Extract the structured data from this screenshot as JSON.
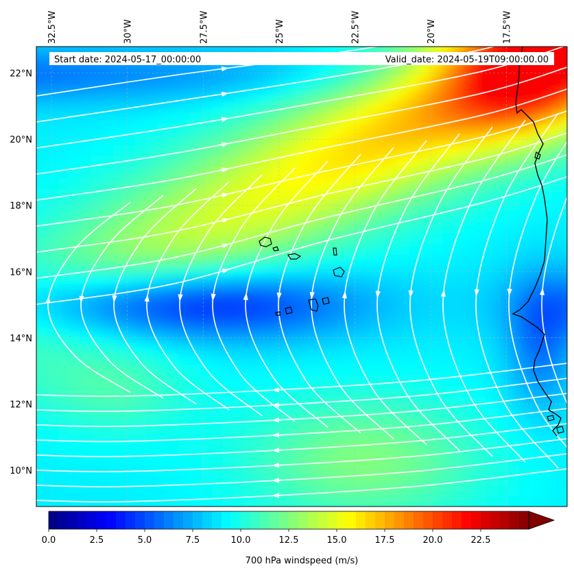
{
  "map": {
    "lon_range": [
      -33,
      -15.5
    ],
    "lat_range": [
      8.9,
      22.8
    ],
    "lon_ticks": [
      {
        "value": -32.5,
        "label": "32.5°W"
      },
      {
        "value": -30,
        "label": "30°W"
      },
      {
        "value": -27.5,
        "label": "27.5°W"
      },
      {
        "value": -25,
        "label": "25°W"
      },
      {
        "value": -22.5,
        "label": "22.5°W"
      },
      {
        "value": -20,
        "label": "20°W"
      },
      {
        "value": -17.5,
        "label": "17.5°W"
      }
    ],
    "lat_ticks": [
      {
        "value": 22,
        "label": "22°N"
      },
      {
        "value": 20,
        "label": "20°N"
      },
      {
        "value": 18,
        "label": "18°N"
      },
      {
        "value": 16,
        "label": "16°N"
      },
      {
        "value": 14,
        "label": "14°N"
      },
      {
        "value": 12,
        "label": "12°N"
      },
      {
        "value": 10,
        "label": "10°N"
      }
    ],
    "start_date": "Start date: 2024-05-17_00:00:00",
    "valid_date": "Valid_date: 2024-05-19T09:00:00.00",
    "field": "700 hPa windspeed",
    "streamline_color": "#ffffff",
    "coastline_color": "#000000"
  },
  "colorbar": {
    "label": "700 hPa windspeed (m/s)",
    "min": 0,
    "max": 25,
    "step": 0.5,
    "extend": "max",
    "colormap": "jet",
    "tick_values": [
      0,
      2.5,
      5,
      7.5,
      10,
      12.5,
      15,
      17.5,
      20,
      22.5
    ],
    "ticks": [
      "0.0",
      "2.5",
      "5.0",
      "7.5",
      "10.0",
      "12.5",
      "15.0",
      "17.5",
      "20.0",
      "22.5"
    ]
  }
}
